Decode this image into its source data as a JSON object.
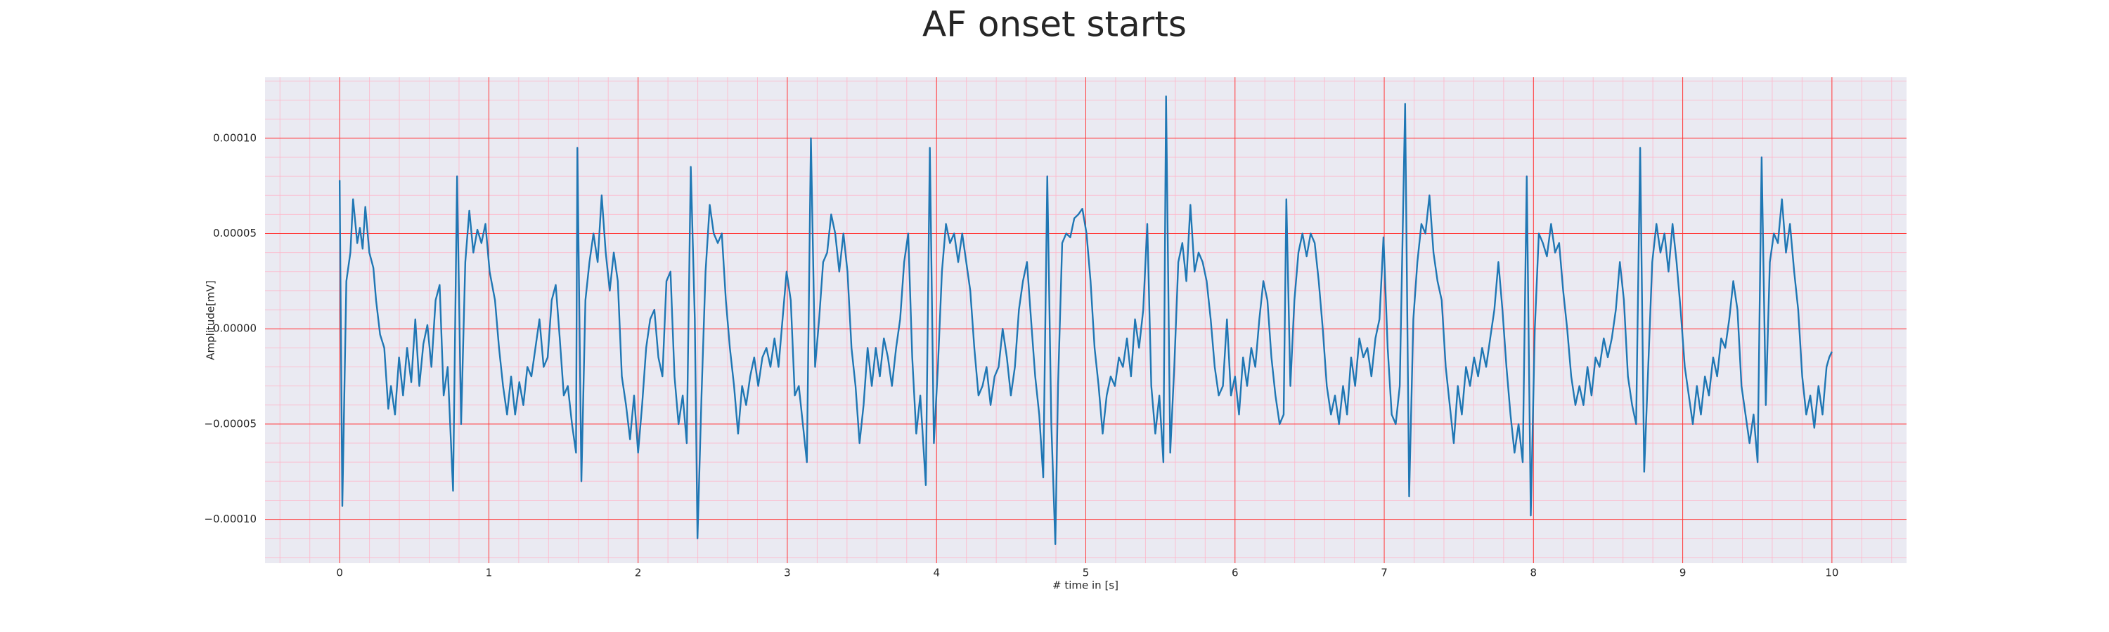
{
  "chart_data": {
    "type": "line",
    "title": "AF onset starts",
    "xlabel": "# time in [s]",
    "ylabel": "Amplitude[mV]",
    "color": "#1f77b4",
    "grid": true,
    "minor_grid": true,
    "xlim": [
      -0.5,
      10.5
    ],
    "ylim": [
      -0.000123,
      0.000132
    ],
    "xticks": [
      0,
      1,
      2,
      3,
      4,
      5,
      6,
      7,
      8,
      9,
      10
    ],
    "yticks": [
      {
        "value": -0.0001,
        "label": "−0.00010"
      },
      {
        "value": -5e-05,
        "label": "−0.00005"
      },
      {
        "value": 0,
        "label": "0.00000"
      },
      {
        "value": 5e-05,
        "label": "0.00005"
      },
      {
        "value": 0.0001,
        "label": "0.00010"
      }
    ],
    "x": [
      0,
      0.018,
      0.045,
      0.072,
      0.09,
      0.118,
      0.136,
      0.154,
      0.172,
      0.199,
      0.226,
      0.244,
      0.271,
      0.299,
      0.326,
      0.344,
      0.371,
      0.398,
      0.425,
      0.452,
      0.48,
      0.507,
      0.534,
      0.561,
      0.588,
      0.615,
      0.643,
      0.67,
      0.697,
      0.724,
      0.76,
      0.787,
      0.814,
      0.842,
      0.869,
      0.896,
      0.923,
      0.95,
      0.977,
      1.005,
      1.041,
      1.068,
      1.095,
      1.122,
      1.149,
      1.176,
      1.204,
      1.231,
      1.258,
      1.285,
      1.312,
      1.339,
      1.367,
      1.394,
      1.421,
      1.448,
      1.475,
      1.502,
      1.529,
      1.557,
      1.584,
      1.593,
      1.62,
      1.647,
      1.674,
      1.701,
      1.729,
      1.756,
      1.783,
      1.81,
      1.837,
      1.864,
      1.891,
      1.919,
      1.946,
      1.973,
      2.0,
      2.027,
      2.054,
      2.081,
      2.109,
      2.136,
      2.163,
      2.19,
      2.217,
      2.244,
      2.271,
      2.299,
      2.326,
      2.353,
      2.38,
      2.398,
      2.425,
      2.452,
      2.48,
      2.507,
      2.534,
      2.561,
      2.588,
      2.615,
      2.643,
      2.67,
      2.697,
      2.724,
      2.751,
      2.778,
      2.805,
      2.833,
      2.86,
      2.887,
      2.914,
      2.941,
      2.968,
      2.995,
      3.023,
      3.05,
      3.077,
      3.104,
      3.131,
      3.158,
      3.186,
      3.213,
      3.24,
      3.267,
      3.294,
      3.321,
      3.348,
      3.376,
      3.403,
      3.43,
      3.457,
      3.484,
      3.511,
      3.538,
      3.566,
      3.593,
      3.62,
      3.647,
      3.674,
      3.701,
      3.729,
      3.756,
      3.783,
      3.81,
      3.837,
      3.864,
      3.891,
      3.928,
      3.955,
      3.982,
      4.009,
      4.036,
      4.063,
      4.09,
      4.118,
      4.145,
      4.172,
      4.199,
      4.226,
      4.253,
      4.281,
      4.308,
      4.335,
      4.362,
      4.389,
      4.416,
      4.443,
      4.471,
      4.498,
      4.525,
      4.552,
      4.579,
      4.606,
      4.633,
      4.661,
      4.688,
      4.715,
      4.742,
      4.769,
      4.796,
      4.814,
      4.842,
      4.869,
      4.896,
      4.923,
      4.95,
      4.977,
      5.005,
      5.032,
      5.059,
      5.086,
      5.113,
      5.14,
      5.167,
      5.195,
      5.222,
      5.249,
      5.276,
      5.303,
      5.33,
      5.357,
      5.385,
      5.412,
      5.439,
      5.466,
      5.493,
      5.52,
      5.538,
      5.566,
      5.593,
      5.62,
      5.647,
      5.674,
      5.701,
      5.729,
      5.756,
      5.783,
      5.81,
      5.837,
      5.864,
      5.891,
      5.919,
      5.946,
      5.973,
      6.0,
      6.027,
      6.054,
      6.081,
      6.109,
      6.136,
      6.163,
      6.19,
      6.217,
      6.244,
      6.271,
      6.299,
      6.326,
      6.344,
      6.371,
      6.398,
      6.425,
      6.452,
      6.48,
      6.507,
      6.534,
      6.561,
      6.588,
      6.615,
      6.643,
      6.67,
      6.697,
      6.724,
      6.751,
      6.778,
      6.805,
      6.833,
      6.86,
      6.887,
      6.914,
      6.941,
      6.968,
      6.995,
      7.023,
      7.05,
      7.077,
      7.104,
      7.14,
      7.167,
      7.195,
      7.222,
      7.249,
      7.276,
      7.303,
      7.33,
      7.357,
      7.385,
      7.412,
      7.439,
      7.466,
      7.493,
      7.52,
      7.548,
      7.575,
      7.602,
      7.629,
      7.656,
      7.683,
      7.71,
      7.738,
      7.765,
      7.792,
      7.819,
      7.846,
      7.873,
      7.9,
      7.928,
      7.955,
      7.982,
      8.009,
      8.036,
      8.063,
      8.09,
      8.118,
      8.145,
      8.172,
      8.199,
      8.226,
      8.253,
      8.281,
      8.308,
      8.335,
      8.362,
      8.389,
      8.416,
      8.443,
      8.471,
      8.498,
      8.525,
      8.552,
      8.579,
      8.606,
      8.633,
      8.661,
      8.688,
      8.715,
      8.742,
      8.769,
      8.796,
      8.824,
      8.851,
      8.878,
      8.905,
      8.932,
      8.959,
      8.986,
      9.014,
      9.041,
      9.068,
      9.095,
      9.122,
      9.149,
      9.176,
      9.204,
      9.231,
      9.258,
      9.285,
      9.312,
      9.339,
      9.367,
      9.394,
      9.421,
      9.448,
      9.475,
      9.502,
      9.529,
      9.557,
      9.584,
      9.611,
      9.638,
      9.665,
      9.692,
      9.719,
      9.747,
      9.774,
      9.801,
      9.828,
      9.855,
      9.882,
      9.91,
      9.937,
      9.964,
      9.982,
      10
    ],
    "values": [
      7.8e-05,
      -9.3e-05,
      2.5e-05,
      4e-05,
      6.8e-05,
      4.5e-05,
      5.3e-05,
      4.2e-05,
      6.4e-05,
      4e-05,
      3.2e-05,
      1.5e-05,
      -3e-06,
      -1e-05,
      -4.2e-05,
      -3e-05,
      -4.5e-05,
      -1.5e-05,
      -3.5e-05,
      -1e-05,
      -2.8e-05,
      5e-06,
      -3e-05,
      -8e-06,
      2e-06,
      -2e-05,
      1.5e-05,
      2.3e-05,
      -3.5e-05,
      -2e-05,
      -8.5e-05,
      8e-05,
      -5e-05,
      3.5e-05,
      6.2e-05,
      4e-05,
      5.2e-05,
      4.5e-05,
      5.5e-05,
      3e-05,
      1.5e-05,
      -1e-05,
      -3e-05,
      -4.5e-05,
      -2.5e-05,
      -4.5e-05,
      -2.8e-05,
      -4e-05,
      -2e-05,
      -2.5e-05,
      -1e-05,
      5e-06,
      -2e-05,
      -1.5e-05,
      1.5e-05,
      2.3e-05,
      -5e-06,
      -3.5e-05,
      -3e-05,
      -5e-05,
      -6.5e-05,
      9.5e-05,
      -8e-05,
      1.5e-05,
      3.5e-05,
      5e-05,
      3.5e-05,
      7e-05,
      4e-05,
      2e-05,
      4e-05,
      2.5e-05,
      -2.5e-05,
      -4e-05,
      -5.8e-05,
      -3.5e-05,
      -6.5e-05,
      -4e-05,
      -1e-05,
      5e-06,
      1e-05,
      -1.5e-05,
      -2.5e-05,
      2.5e-05,
      3e-05,
      -2.5e-05,
      -5e-05,
      -3.5e-05,
      -6e-05,
      8.5e-05,
      5e-06,
      -0.00011,
      -3.5e-05,
      3e-05,
      6.5e-05,
      5e-05,
      4.5e-05,
      5e-05,
      1.5e-05,
      -1e-05,
      -3e-05,
      -5.5e-05,
      -3e-05,
      -4e-05,
      -2.5e-05,
      -1.5e-05,
      -3e-05,
      -1.5e-05,
      -1e-05,
      -2e-05,
      -5e-06,
      -2e-05,
      5e-06,
      3e-05,
      1.5e-05,
      -3.5e-05,
      -3e-05,
      -5e-05,
      -7e-05,
      0.0001,
      -2e-05,
      5e-06,
      3.5e-05,
      4e-05,
      6e-05,
      5e-05,
      3e-05,
      5e-05,
      3e-05,
      -1e-05,
      -3e-05,
      -6e-05,
      -4e-05,
      -1e-05,
      -3e-05,
      -1e-05,
      -2.5e-05,
      -5e-06,
      -1.5e-05,
      -3e-05,
      -1e-05,
      5e-06,
      3.5e-05,
      5e-05,
      -1.5e-05,
      -5.5e-05,
      -3.5e-05,
      -8.2e-05,
      9.5e-05,
      -6e-05,
      -2e-05,
      3e-05,
      5.5e-05,
      4.5e-05,
      5e-05,
      3.5e-05,
      5e-05,
      3.5e-05,
      2e-05,
      -1e-05,
      -3.5e-05,
      -3e-05,
      -2e-05,
      -4e-05,
      -2.5e-05,
      -2e-05,
      0,
      -1.5e-05,
      -3.5e-05,
      -2e-05,
      1e-05,
      2.5e-05,
      3.5e-05,
      5e-06,
      -2.5e-05,
      -4.5e-05,
      -7.8e-05,
      8e-05,
      -5e-05,
      -0.000113,
      -3e-05,
      4.5e-05,
      5e-05,
      4.8e-05,
      5.8e-05,
      6e-05,
      6.3e-05,
      5e-05,
      2.5e-05,
      -1e-05,
      -3e-05,
      -5.5e-05,
      -3.5e-05,
      -2.5e-05,
      -3e-05,
      -1.5e-05,
      -2e-05,
      -5e-06,
      -2.5e-05,
      5e-06,
      -1e-05,
      1e-05,
      5.5e-05,
      -3e-05,
      -5.5e-05,
      -3.5e-05,
      -7e-05,
      0.000122,
      -6.5e-05,
      -2e-05,
      3.5e-05,
      4.5e-05,
      2.5e-05,
      6.5e-05,
      3e-05,
      4e-05,
      3.5e-05,
      2.5e-05,
      5e-06,
      -2e-05,
      -3.5e-05,
      -3e-05,
      5e-06,
      -3.5e-05,
      -2.5e-05,
      -4.5e-05,
      -1.5e-05,
      -3e-05,
      -1e-05,
      -2e-05,
      5e-06,
      2.5e-05,
      1.5e-05,
      -1.5e-05,
      -3.5e-05,
      -5e-05,
      -4.5e-05,
      6.8e-05,
      -3e-05,
      1.5e-05,
      4e-05,
      5e-05,
      3.8e-05,
      5e-05,
      4.5e-05,
      2.5e-05,
      0,
      -3e-05,
      -4.5e-05,
      -3.5e-05,
      -5e-05,
      -3e-05,
      -4.5e-05,
      -1.5e-05,
      -3e-05,
      -5e-06,
      -1.5e-05,
      -1e-05,
      -2.5e-05,
      -5e-06,
      5e-06,
      4.8e-05,
      -1e-05,
      -4.5e-05,
      -5e-05,
      -3e-05,
      0.000118,
      -8.8e-05,
      5e-06,
      3.5e-05,
      5.5e-05,
      5e-05,
      7e-05,
      4e-05,
      2.5e-05,
      1.5e-05,
      -2e-05,
      -4e-05,
      -6e-05,
      -3e-05,
      -4.5e-05,
      -2e-05,
      -3e-05,
      -1.5e-05,
      -2.5e-05,
      -1e-05,
      -2e-05,
      -5e-06,
      1e-05,
      3.5e-05,
      1e-05,
      -2e-05,
      -4.5e-05,
      -6.5e-05,
      -5e-05,
      -7e-05,
      8e-05,
      -9.8e-05,
      0,
      5e-05,
      4.5e-05,
      3.8e-05,
      5.5e-05,
      4e-05,
      4.5e-05,
      2e-05,
      0,
      -2.5e-05,
      -4e-05,
      -3e-05,
      -4e-05,
      -2e-05,
      -3.5e-05,
      -1.5e-05,
      -2e-05,
      -5e-06,
      -1.5e-05,
      -5e-06,
      1e-05,
      3.5e-05,
      1.5e-05,
      -2.5e-05,
      -4e-05,
      -5e-05,
      9.5e-05,
      -7.5e-05,
      -2e-05,
      3.5e-05,
      5.5e-05,
      4e-05,
      5e-05,
      3e-05,
      5.5e-05,
      3.5e-05,
      1e-05,
      -2e-05,
      -3.5e-05,
      -5e-05,
      -3e-05,
      -4.5e-05,
      -2.5e-05,
      -3.5e-05,
      -1.5e-05,
      -2.5e-05,
      -5e-06,
      -1e-05,
      5e-06,
      2.5e-05,
      1e-05,
      -3e-05,
      -4.5e-05,
      -6e-05,
      -4.5e-05,
      -7e-05,
      9e-05,
      -4e-05,
      3.5e-05,
      5e-05,
      4.5e-05,
      6.8e-05,
      4e-05,
      5.5e-05,
      3e-05,
      1e-05,
      -2.5e-05,
      -4.5e-05,
      -3.5e-05,
      -5.2e-05,
      -3e-05,
      -4.5e-05,
      -2e-05,
      -1.5e-05,
      -1.2e-05
    ]
  }
}
